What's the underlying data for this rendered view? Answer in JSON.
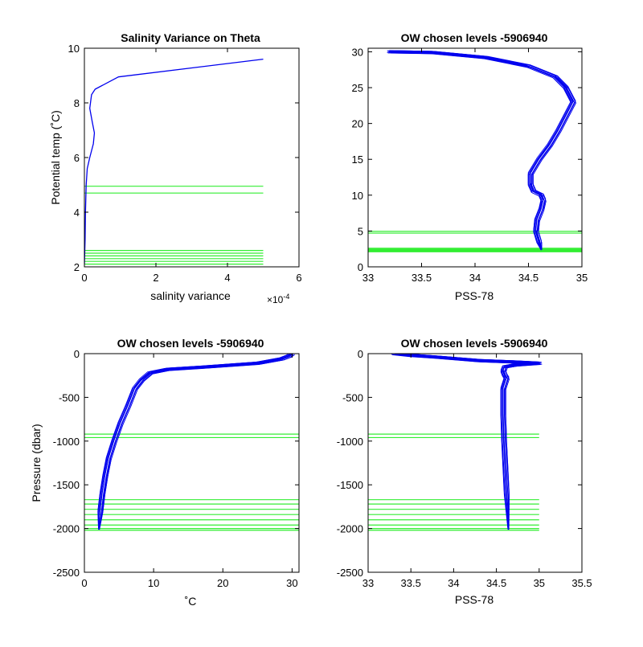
{
  "figure": {
    "background": "#ffffff"
  },
  "colors": {
    "profile": "#0000ee",
    "levels": "#33ee33",
    "axis": "#000000"
  },
  "chart_data": [
    {
      "type": "line",
      "title": "Salinity Variance on Theta",
      "xlabel": "salinity variance",
      "ylabel": "Potential temp (˚C)",
      "xlim": [
        0,
        6
      ],
      "ylim": [
        2,
        10
      ],
      "xticks": [
        0,
        2,
        4,
        6
      ],
      "yticks": [
        2,
        4,
        6,
        8,
        10
      ],
      "x_exponent_label": "×10",
      "x_exponent_power": "-4",
      "series": [
        {
          "values": [
            [
              0.0,
              2.1
            ],
            [
              0.02,
              3.0
            ],
            [
              0.03,
              4.0
            ],
            [
              0.05,
              5.0
            ],
            [
              0.08,
              5.6
            ],
            [
              0.15,
              6.0
            ],
            [
              0.25,
              6.5
            ],
            [
              0.28,
              6.9
            ],
            [
              0.22,
              7.3
            ],
            [
              0.15,
              7.8
            ],
            [
              0.2,
              8.3
            ],
            [
              0.3,
              8.5
            ],
            [
              0.95,
              8.95
            ],
            [
              5.0,
              9.6
            ]
          ]
        }
      ],
      "levels": [
        2.1,
        2.2,
        2.3,
        2.4,
        2.5,
        2.6,
        4.7,
        4.95
      ],
      "level_extent": [
        0,
        5
      ]
    },
    {
      "type": "line",
      "title": "OW chosen levels -5906940",
      "xlabel": "PSS-78",
      "ylabel": "",
      "xlim": [
        33,
        35
      ],
      "ylim": [
        0,
        30.5
      ],
      "xticks": [
        33,
        33.5,
        34,
        34.5,
        35
      ],
      "yticks": [
        0,
        5,
        10,
        15,
        20,
        25,
        30
      ],
      "series": [
        {
          "values": [
            [
              34.62,
              2.5
            ],
            [
              34.6,
              3.5
            ],
            [
              34.57,
              5.0
            ],
            [
              34.58,
              6.5
            ],
            [
              34.62,
              8.0
            ],
            [
              34.64,
              9.3
            ],
            [
              34.62,
              10.0
            ],
            [
              34.55,
              10.5
            ],
            [
              34.52,
              11.5
            ],
            [
              34.52,
              13.0
            ],
            [
              34.6,
              15.0
            ],
            [
              34.7,
              17.0
            ],
            [
              34.78,
              19.0
            ],
            [
              34.85,
              21.0
            ],
            [
              34.92,
              23.0
            ],
            [
              34.85,
              25.0
            ],
            [
              34.75,
              26.5
            ],
            [
              34.5,
              28.0
            ],
            [
              34.1,
              29.2
            ],
            [
              33.6,
              29.9
            ],
            [
              33.2,
              30.0
            ]
          ]
        }
      ],
      "levels": [
        2.1,
        2.2,
        2.3,
        2.4,
        2.5,
        2.6,
        4.7,
        4.95
      ],
      "level_extent": [
        33,
        35
      ]
    },
    {
      "type": "line",
      "title": "OW chosen levels -5906940",
      "xlabel": "˚C",
      "ylabel": "Pressure (dbar)",
      "xlim": [
        0,
        31
      ],
      "ylim": [
        -2500,
        0
      ],
      "xticks": [
        0,
        10,
        20,
        30
      ],
      "yticks": [
        -2500,
        -2000,
        -1500,
        -1000,
        -500,
        0
      ],
      "series": [
        {
          "values": [
            [
              2.1,
              -2000
            ],
            [
              2.3,
              -1800
            ],
            [
              2.6,
              -1600
            ],
            [
              3.0,
              -1400
            ],
            [
              3.5,
              -1200
            ],
            [
              4.3,
              -1000
            ],
            [
              5.2,
              -800
            ],
            [
              6.3,
              -600
            ],
            [
              7.3,
              -400
            ],
            [
              8.3,
              -300
            ],
            [
              9.5,
              -220
            ],
            [
              12.0,
              -180
            ],
            [
              18.0,
              -150
            ],
            [
              25.0,
              -110
            ],
            [
              28.5,
              -60
            ],
            [
              29.5,
              -30
            ],
            [
              30.0,
              0
            ]
          ]
        }
      ],
      "levels": [
        -920,
        -960,
        -1670,
        -1720,
        -1780,
        -1840,
        -1900,
        -1960,
        -2000,
        -2020
      ],
      "level_extent": [
        0,
        31
      ]
    },
    {
      "type": "line",
      "title": "OW chosen levels -5906940",
      "xlabel": "PSS-78",
      "ylabel": "",
      "xlim": [
        33,
        35.5
      ],
      "ylim": [
        -2500,
        0
      ],
      "xticks": [
        33,
        33.5,
        34,
        34.5,
        35,
        35.5
      ],
      "yticks": [
        -2500,
        -2000,
        -1500,
        -1000,
        -500,
        0
      ],
      "series": [
        {
          "values": [
            [
              34.64,
              -2000
            ],
            [
              34.62,
              -1600
            ],
            [
              34.59,
              -1000
            ],
            [
              34.58,
              -700
            ],
            [
              34.58,
              -400
            ],
            [
              34.62,
              -280
            ],
            [
              34.6,
              -250
            ],
            [
              34.58,
              -200
            ],
            [
              34.6,
              -150
            ],
            [
              34.72,
              -130
            ],
            [
              35.0,
              -110
            ],
            [
              34.7,
              -95
            ],
            [
              34.3,
              -80
            ],
            [
              33.8,
              -40
            ],
            [
              33.5,
              -20
            ],
            [
              33.3,
              0
            ]
          ]
        }
      ],
      "levels": [
        -920,
        -960,
        -1670,
        -1720,
        -1780,
        -1840,
        -1900,
        -1960,
        -2000,
        -2020
      ],
      "level_extent": [
        33,
        35
      ]
    }
  ]
}
